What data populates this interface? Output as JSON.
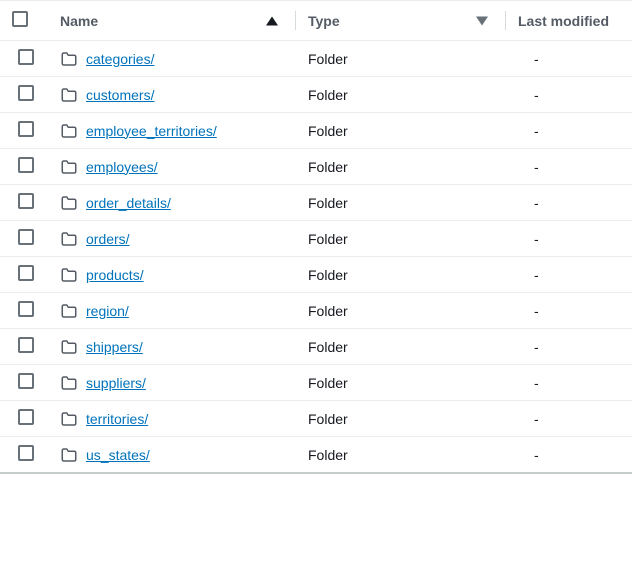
{
  "columns": {
    "name": "Name",
    "type": "Type",
    "last_modified": "Last modified"
  },
  "placeholder_dash": "-",
  "rows": [
    {
      "name": "categories/",
      "type": "Folder",
      "last_modified": "-"
    },
    {
      "name": "customers/",
      "type": "Folder",
      "last_modified": "-"
    },
    {
      "name": "employee_territories/",
      "type": "Folder",
      "last_modified": "-"
    },
    {
      "name": "employees/",
      "type": "Folder",
      "last_modified": "-"
    },
    {
      "name": "order_details/",
      "type": "Folder",
      "last_modified": "-"
    },
    {
      "name": "orders/",
      "type": "Folder",
      "last_modified": "-"
    },
    {
      "name": "products/",
      "type": "Folder",
      "last_modified": "-"
    },
    {
      "name": "region/",
      "type": "Folder",
      "last_modified": "-"
    },
    {
      "name": "shippers/",
      "type": "Folder",
      "last_modified": "-"
    },
    {
      "name": "suppliers/",
      "type": "Folder",
      "last_modified": "-"
    },
    {
      "name": "territories/",
      "type": "Folder",
      "last_modified": "-"
    },
    {
      "name": "us_states/",
      "type": "Folder",
      "last_modified": "-"
    }
  ],
  "colors": {
    "link": "#0073bb",
    "header_text": "#545b64",
    "border": "#eaeded",
    "divider": "#d5dbdb",
    "checkbox_border": "#687078",
    "icon_stroke": "#545b64"
  }
}
